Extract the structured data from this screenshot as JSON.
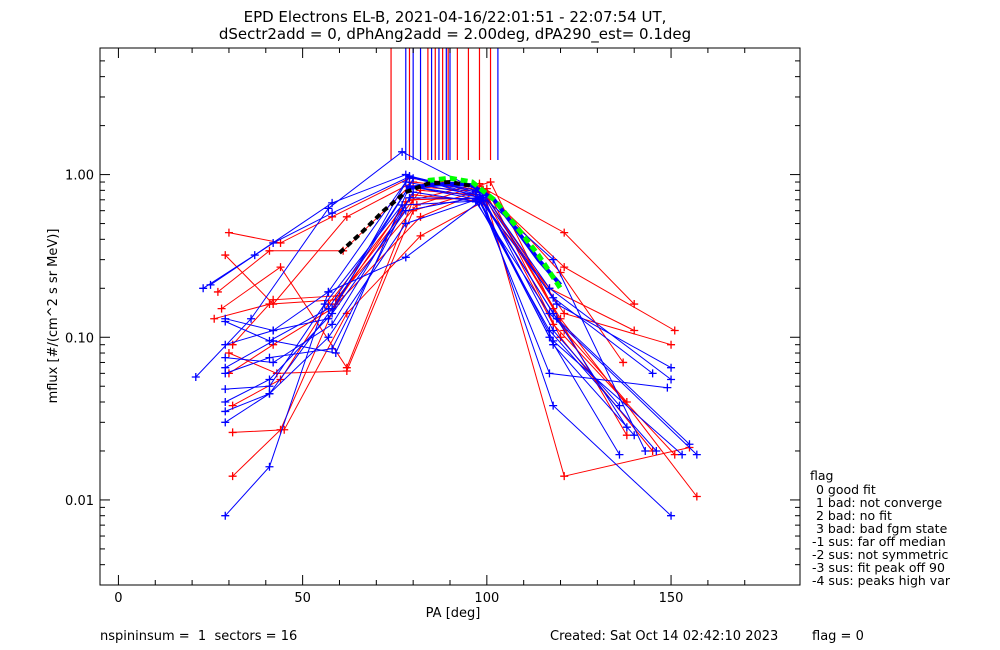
{
  "chart_data": {
    "type": "line",
    "title": "EPD Electrons EL-B, 2021-04-16/22:01:51 - 22:07:54 UT,",
    "subtitle": "dSectr2add = 0, dPhAng2add = 2.00deg, dPA290_est=   0.1deg",
    "xlabel": "PA [deg]",
    "ylabel": "mflux [#/(cm^2 s sr MeV)]",
    "xlim": [
      -5,
      185
    ],
    "ylim": [
      0.003,
      6.0
    ],
    "yscale": "log",
    "xticks": [
      0,
      50,
      100,
      150
    ],
    "xtick_labels": [
      "0",
      "50",
      "100",
      "150"
    ],
    "yticks": [
      0.01,
      0.1,
      1.0
    ],
    "ytick_labels": [
      "0.01",
      "0.10",
      "1.00"
    ],
    "colors": {
      "red": "#ff0000",
      "blue": "#0000ff",
      "green": "#00ff00",
      "black": "#000000"
    },
    "vlines": {
      "red": [
        74,
        79,
        84,
        86,
        88,
        89.5,
        92,
        95,
        98,
        101
      ],
      "blue": [
        78,
        80,
        82,
        85,
        87,
        89,
        90,
        103
      ]
    },
    "series": [
      {
        "color": "red",
        "x": [
          30,
          44,
          58,
          79,
          98,
          121,
          140
        ],
        "y": [
          0.44,
          0.38,
          0.55,
          0.95,
          0.85,
          0.44,
          0.16
        ]
      },
      {
        "color": "red",
        "x": [
          29,
          42,
          62,
          80,
          99,
          121,
          151
        ],
        "y": [
          0.32,
          0.16,
          0.55,
          0.9,
          0.8,
          0.27,
          0.11
        ]
      },
      {
        "color": "red",
        "x": [
          27,
          41,
          61,
          79,
          100,
          120,
          137
        ],
        "y": [
          0.19,
          0.34,
          0.34,
          0.85,
          0.78,
          0.25,
          0.07
        ]
      },
      {
        "color": "red",
        "x": [
          26,
          41,
          59,
          82,
          97,
          117,
          140
        ],
        "y": [
          0.13,
          0.16,
          0.17,
          0.8,
          0.75,
          0.2,
          0.11
        ]
      },
      {
        "color": "red",
        "x": [
          28,
          44,
          62,
          80,
          100,
          121,
          150
        ],
        "y": [
          0.15,
          0.27,
          0.065,
          0.7,
          0.72,
          0.14,
          0.09
        ]
      },
      {
        "color": "red",
        "x": [
          31,
          42,
          60,
          81,
          101,
          121,
          138
        ],
        "y": [
          0.09,
          0.17,
          0.18,
          0.65,
          0.9,
          0.11,
          0.04
        ]
      },
      {
        "color": "red",
        "x": [
          30,
          42,
          58,
          82,
          99,
          118,
          138
        ],
        "y": [
          0.06,
          0.09,
          0.15,
          0.55,
          0.8,
          0.15,
          0.025
        ]
      },
      {
        "color": "red",
        "x": [
          31,
          44,
          57,
          80,
          100,
          121,
          155
        ],
        "y": [
          0.038,
          0.055,
          0.16,
          0.75,
          0.68,
          0.014,
          0.021
        ]
      },
      {
        "color": "red",
        "x": [
          31,
          45,
          62,
          82,
          100,
          118,
          151
        ],
        "y": [
          0.026,
          0.027,
          0.14,
          0.42,
          0.7,
          0.12,
          0.019
        ]
      },
      {
        "color": "red",
        "x": [
          31,
          44,
          59,
          78,
          98,
          120,
          157
        ],
        "y": [
          0.014,
          0.027,
          0.16,
          0.68,
          0.88,
          0.13,
          0.0105
        ]
      },
      {
        "color": "red",
        "x": [
          30,
          43,
          62,
          80,
          100,
          120,
          145
        ],
        "y": [
          0.08,
          0.06,
          0.062,
          0.6,
          0.82,
          0.1,
          0.02
        ]
      },
      {
        "color": "blue",
        "x": [
          21,
          36,
          57,
          77,
          99,
          117,
          150
        ],
        "y": [
          0.057,
          0.13,
          0.62,
          1.38,
          0.77,
          0.2,
          0.055
        ]
      },
      {
        "color": "blue",
        "x": [
          23,
          37,
          58,
          78,
          98,
          118,
          145
        ],
        "y": [
          0.2,
          0.32,
          0.67,
          1.0,
          0.72,
          0.175,
          0.06
        ]
      },
      {
        "color": "blue",
        "x": [
          25,
          42,
          58,
          79,
          97,
          118,
          143
        ],
        "y": [
          0.21,
          0.38,
          0.58,
          0.97,
          0.8,
          0.3,
          0.02
        ]
      },
      {
        "color": "blue",
        "x": [
          29,
          42,
          57,
          78,
          99,
          119,
          150
        ],
        "y": [
          0.13,
          0.11,
          0.19,
          0.9,
          0.74,
          0.16,
          0.065
        ]
      },
      {
        "color": "blue",
        "x": [
          29,
          41,
          57,
          79,
          98,
          118,
          153
        ],
        "y": [
          0.125,
          0.095,
          0.15,
          0.85,
          0.7,
          0.095,
          0.019
        ]
      },
      {
        "color": "blue",
        "x": [
          29,
          42,
          58,
          80,
          97,
          117,
          157
        ],
        "y": [
          0.075,
          0.07,
          0.12,
          0.78,
          0.68,
          0.14,
          0.019
        ]
      },
      {
        "color": "blue",
        "x": [
          29,
          41,
          58,
          79,
          98,
          117,
          149
        ],
        "y": [
          0.06,
          0.075,
          0.085,
          0.72,
          0.71,
          0.06,
          0.049
        ]
      },
      {
        "color": "blue",
        "x": [
          29,
          41,
          56,
          77,
          99,
          118,
          150
        ],
        "y": [
          0.048,
          0.05,
          0.16,
          0.65,
          0.69,
          0.038,
          0.008
        ]
      },
      {
        "color": "blue",
        "x": [
          29,
          41,
          58,
          78,
          98,
          119,
          155
        ],
        "y": [
          0.04,
          0.055,
          0.14,
          0.6,
          0.73,
          0.13,
          0.022
        ]
      },
      {
        "color": "blue",
        "x": [
          29,
          41,
          57,
          78,
          97,
          117,
          146
        ],
        "y": [
          0.035,
          0.045,
          0.1,
          0.5,
          0.7,
          0.11,
          0.02
        ]
      },
      {
        "color": "blue",
        "x": [
          29,
          41,
          58,
          79,
          99,
          118,
          136
        ],
        "y": [
          0.03,
          0.045,
          0.15,
          0.85,
          0.72,
          0.11,
          0.038
        ]
      },
      {
        "color": "blue",
        "x": [
          29,
          41,
          57,
          78,
          98,
          117,
          136
        ],
        "y": [
          0.008,
          0.016,
          0.19,
          0.31,
          0.68,
          0.1,
          0.019
        ]
      },
      {
        "color": "blue",
        "x": [
          29,
          42,
          59,
          80,
          98,
          118,
          138
        ],
        "y": [
          0.065,
          0.095,
          0.08,
          0.95,
          0.75,
          0.14,
          0.028
        ]
      },
      {
        "color": "blue",
        "x": [
          29,
          42,
          57,
          79,
          97,
          118,
          140
        ],
        "y": [
          0.09,
          0.11,
          0.13,
          0.98,
          0.78,
          0.09,
          0.025
        ]
      }
    ],
    "fit_black": {
      "x": [
        60,
        66,
        72,
        78,
        84,
        90,
        96
      ],
      "y": [
        0.33,
        0.44,
        0.6,
        0.78,
        0.88,
        0.9,
        0.85
      ]
    },
    "fit_green": {
      "x": [
        84,
        90,
        96,
        102,
        108,
        114,
        120
      ],
      "y": [
        0.92,
        0.95,
        0.9,
        0.7,
        0.48,
        0.32,
        0.2
      ]
    },
    "fit_blue": {
      "x": [
        78,
        84,
        90,
        96,
        102,
        108,
        114,
        120
      ],
      "y": [
        0.82,
        0.86,
        0.88,
        0.86,
        0.7,
        0.46,
        0.3,
        0.21
      ]
    }
  },
  "legend": {
    "title": "flag",
    "items": [
      " 0 good fit",
      " 1 bad: not converge",
      " 2 bad: no fit",
      " 3 bad: bad fgm state",
      "-1 sus: far off median",
      "-2 sus: not symmetric",
      "-3 sus: fit peak off 90",
      "-4 sus: peaks high var"
    ]
  },
  "footer": {
    "left": "nspininsum =  1  sectors = 16",
    "created": "Created: Sat Oct 14 02:42:10 2023",
    "flag": "flag = 0"
  }
}
